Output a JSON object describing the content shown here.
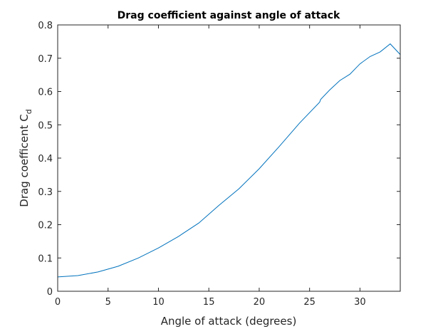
{
  "chart_data": {
    "type": "line",
    "title": "Drag coefficient against angle of attack",
    "xlabel": "Angle of attack (degrees)",
    "ylabel": "Drag coefficent C",
    "ylabel_subscript": "d",
    "xlim": [
      0,
      34
    ],
    "ylim": [
      0,
      0.8
    ],
    "xticks": [
      0,
      5,
      10,
      15,
      20,
      25,
      30
    ],
    "yticks": [
      0,
      0.1,
      0.2,
      0.3,
      0.4,
      0.5,
      0.6,
      0.7,
      0.8
    ],
    "xtick_labels": [
      "0",
      "5",
      "10",
      "15",
      "20",
      "25",
      "30"
    ],
    "ytick_labels": [
      "0",
      "0.1",
      "0.2",
      "0.3",
      "0.4",
      "0.5",
      "0.6",
      "0.7",
      "0.8"
    ],
    "grid": false,
    "line_color": "#0072bd",
    "series": [
      {
        "x": [
          0,
          2,
          4,
          6,
          8,
          10,
          12,
          14,
          16,
          18,
          20,
          22,
          24,
          26,
          26.1,
          27,
          28,
          29,
          30,
          31,
          32,
          33,
          34
        ],
        "y": [
          0.043,
          0.047,
          0.058,
          0.075,
          0.1,
          0.13,
          0.165,
          0.205,
          0.258,
          0.308,
          0.368,
          0.435,
          0.505,
          0.568,
          0.576,
          0.605,
          0.633,
          0.652,
          0.683,
          0.705,
          0.719,
          0.743,
          0.711
        ]
      }
    ]
  }
}
